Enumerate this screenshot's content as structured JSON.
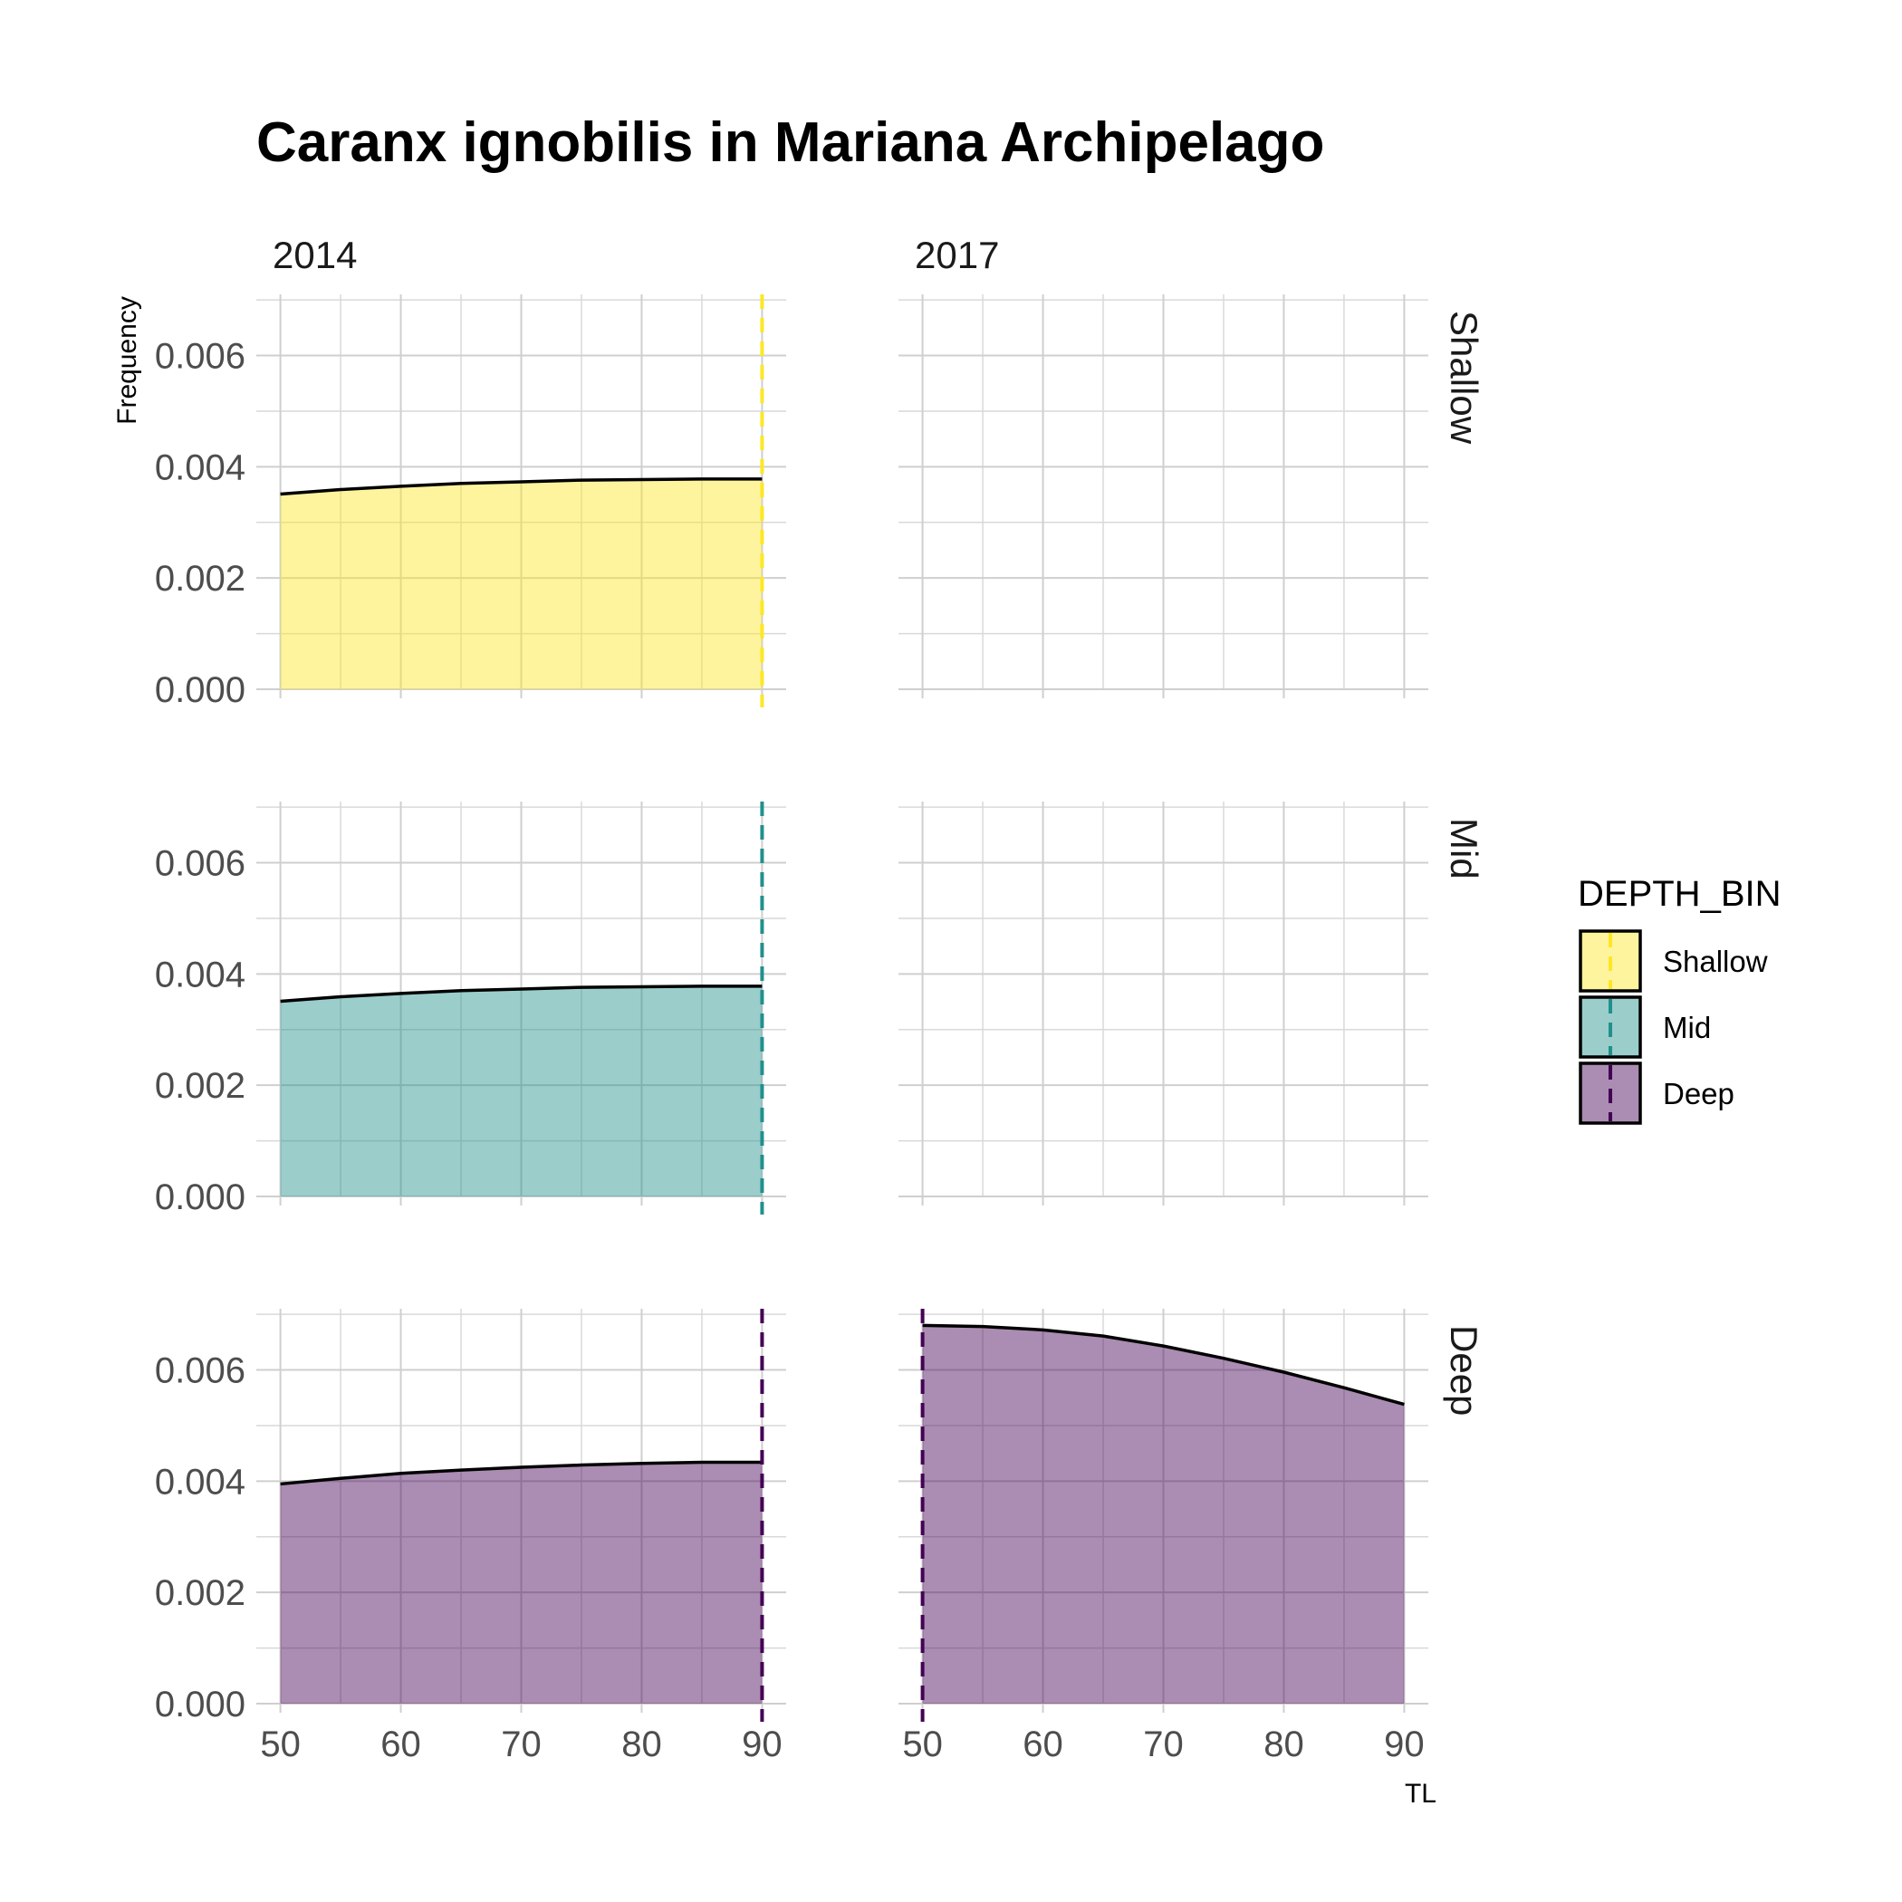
{
  "chart_data": {
    "type": "area",
    "title": "Caranx ignobilis in Mariana Archipelago",
    "xlabel": "TL",
    "ylabel": "Frequency",
    "xlim": [
      48,
      92
    ],
    "ylim": [
      0,
      0.0071
    ],
    "x_ticks": [
      "50",
      "60",
      "70",
      "80",
      "90"
    ],
    "y_ticks": [
      "0.000",
      "0.002",
      "0.004",
      "0.006"
    ],
    "grid": true,
    "legend": {
      "title": "DEPTH_BIN",
      "placement": "right",
      "entries": [
        {
          "label": "Shallow",
          "fill": "#fde725",
          "line": "#fde725"
        },
        {
          "label": "Mid",
          "fill": "#21908c",
          "line": "#21908c"
        },
        {
          "label": "Deep",
          "fill": "#440154",
          "line": "#440154"
        }
      ]
    },
    "columns": [
      "2014",
      "2017"
    ],
    "rows": [
      "Shallow",
      "Mid",
      "Deep"
    ],
    "panels": [
      {
        "column": "2014",
        "row": "Shallow",
        "fill": "#fde725",
        "mean_line": 90,
        "x": [
          50,
          55,
          60,
          65,
          70,
          75,
          80,
          85,
          90
        ],
        "y": [
          0.00351,
          0.00359,
          0.00365,
          0.0037,
          0.00373,
          0.00376,
          0.00377,
          0.00378,
          0.00378
        ]
      },
      {
        "column": "2017",
        "row": "Shallow",
        "fill": "#fde725",
        "mean_line": null,
        "x": [],
        "y": []
      },
      {
        "column": "2014",
        "row": "Mid",
        "fill": "#21908c",
        "mean_line": 90,
        "x": [
          50,
          55,
          60,
          65,
          70,
          75,
          80,
          85,
          90
        ],
        "y": [
          0.00351,
          0.00359,
          0.00365,
          0.0037,
          0.00373,
          0.00376,
          0.00377,
          0.00378,
          0.00378
        ]
      },
      {
        "column": "2017",
        "row": "Mid",
        "fill": "#21908c",
        "mean_line": null,
        "x": [],
        "y": []
      },
      {
        "column": "2014",
        "row": "Deep",
        "fill": "#440154",
        "mean_line": 90,
        "x": [
          50,
          55,
          60,
          65,
          70,
          75,
          80,
          85,
          90
        ],
        "y": [
          0.00395,
          0.00405,
          0.00414,
          0.0042,
          0.00425,
          0.00429,
          0.00432,
          0.00434,
          0.00434
        ]
      },
      {
        "column": "2017",
        "row": "Deep",
        "fill": "#440154",
        "mean_line": 50,
        "x": [
          50,
          55,
          60,
          65,
          70,
          75,
          80,
          85,
          90
        ],
        "y": [
          0.0068,
          0.00678,
          0.00672,
          0.00661,
          0.00643,
          0.00621,
          0.00596,
          0.00568,
          0.00538
        ]
      }
    ]
  }
}
